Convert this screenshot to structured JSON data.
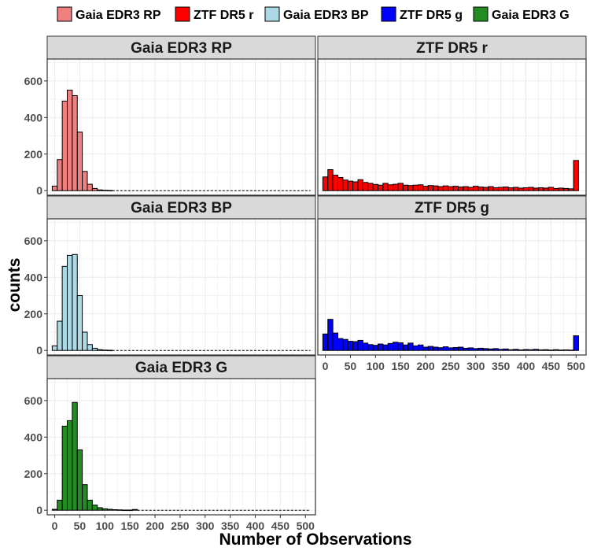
{
  "chart_data": {
    "type": "bar",
    "facet_layout": "2 columns, 3 rows (facet_wrap)",
    "x_label": "Number of Observations",
    "y_label": "counts",
    "x_range": [
      -15,
      520
    ],
    "y_range": [
      -25,
      720
    ],
    "x_ticks": [
      0,
      50,
      100,
      150,
      200,
      250,
      300,
      350,
      400,
      450,
      500
    ],
    "y_ticks": [
      0,
      200,
      400,
      600
    ],
    "bin_width": 10,
    "legend": {
      "position": "top",
      "entries": [
        {
          "label": "Gaia EDR3 RP",
          "color": "#F08080"
        },
        {
          "label": "ZTF DR5 r",
          "color": "#FF0000"
        },
        {
          "label": "Gaia EDR3 BP",
          "color": "#ADD8E6"
        },
        {
          "label": "ZTF DR5 g",
          "color": "#0000FF"
        },
        {
          "label": "Gaia EDR3 G",
          "color": "#228B22"
        }
      ]
    },
    "panels": [
      {
        "title": "Gaia EDR3 RP",
        "color": "#F08080",
        "bins": [
          {
            "x": 0,
            "y": 25
          },
          {
            "x": 10,
            "y": 170
          },
          {
            "x": 20,
            "y": 490
          },
          {
            "x": 30,
            "y": 550
          },
          {
            "x": 40,
            "y": 520
          },
          {
            "x": 50,
            "y": 320
          },
          {
            "x": 60,
            "y": 105
          },
          {
            "x": 70,
            "y": 35
          },
          {
            "x": 80,
            "y": 12
          },
          {
            "x": 90,
            "y": 4
          },
          {
            "x": 100,
            "y": 2
          },
          {
            "x": 110,
            "y": 1
          }
        ]
      },
      {
        "title": "ZTF DR5 r",
        "color": "#FF0000",
        "bins": [
          {
            "x": 0,
            "y": 75
          },
          {
            "x": 10,
            "y": 115
          },
          {
            "x": 20,
            "y": 85
          },
          {
            "x": 30,
            "y": 72
          },
          {
            "x": 40,
            "y": 58
          },
          {
            "x": 50,
            "y": 52
          },
          {
            "x": 60,
            "y": 48
          },
          {
            "x": 70,
            "y": 60
          },
          {
            "x": 80,
            "y": 45
          },
          {
            "x": 90,
            "y": 40
          },
          {
            "x": 100,
            "y": 34
          },
          {
            "x": 110,
            "y": 30
          },
          {
            "x": 120,
            "y": 40
          },
          {
            "x": 130,
            "y": 32
          },
          {
            "x": 140,
            "y": 35
          },
          {
            "x": 150,
            "y": 40
          },
          {
            "x": 160,
            "y": 30
          },
          {
            "x": 170,
            "y": 28
          },
          {
            "x": 180,
            "y": 30
          },
          {
            "x": 190,
            "y": 32
          },
          {
            "x": 200,
            "y": 24
          },
          {
            "x": 210,
            "y": 28
          },
          {
            "x": 220,
            "y": 26
          },
          {
            "x": 230,
            "y": 22
          },
          {
            "x": 240,
            "y": 26
          },
          {
            "x": 250,
            "y": 22
          },
          {
            "x": 260,
            "y": 24
          },
          {
            "x": 270,
            "y": 20
          },
          {
            "x": 280,
            "y": 22
          },
          {
            "x": 290,
            "y": 18
          },
          {
            "x": 300,
            "y": 24
          },
          {
            "x": 310,
            "y": 20
          },
          {
            "x": 320,
            "y": 18
          },
          {
            "x": 330,
            "y": 22
          },
          {
            "x": 340,
            "y": 16
          },
          {
            "x": 350,
            "y": 18
          },
          {
            "x": 360,
            "y": 20
          },
          {
            "x": 370,
            "y": 16
          },
          {
            "x": 380,
            "y": 18
          },
          {
            "x": 390,
            "y": 14
          },
          {
            "x": 400,
            "y": 16
          },
          {
            "x": 410,
            "y": 18
          },
          {
            "x": 420,
            "y": 14
          },
          {
            "x": 430,
            "y": 16
          },
          {
            "x": 440,
            "y": 14
          },
          {
            "x": 450,
            "y": 18
          },
          {
            "x": 460,
            "y": 12
          },
          {
            "x": 470,
            "y": 14
          },
          {
            "x": 480,
            "y": 12
          },
          {
            "x": 490,
            "y": 10
          },
          {
            "x": 500,
            "y": 165
          }
        ]
      },
      {
        "title": "Gaia EDR3 BP",
        "color": "#ADD8E6",
        "bins": [
          {
            "x": 0,
            "y": 25
          },
          {
            "x": 10,
            "y": 160
          },
          {
            "x": 20,
            "y": 460
          },
          {
            "x": 30,
            "y": 520
          },
          {
            "x": 40,
            "y": 525
          },
          {
            "x": 50,
            "y": 300
          },
          {
            "x": 60,
            "y": 100
          },
          {
            "x": 70,
            "y": 32
          },
          {
            "x": 80,
            "y": 12
          },
          {
            "x": 90,
            "y": 4
          },
          {
            "x": 100,
            "y": 2
          },
          {
            "x": 110,
            "y": 1
          }
        ]
      },
      {
        "title": "ZTF DR5 g",
        "color": "#0000FF",
        "bins": [
          {
            "x": 0,
            "y": 90
          },
          {
            "x": 10,
            "y": 170
          },
          {
            "x": 20,
            "y": 95
          },
          {
            "x": 30,
            "y": 65
          },
          {
            "x": 40,
            "y": 60
          },
          {
            "x": 50,
            "y": 50
          },
          {
            "x": 60,
            "y": 48
          },
          {
            "x": 70,
            "y": 55
          },
          {
            "x": 80,
            "y": 40
          },
          {
            "x": 90,
            "y": 32
          },
          {
            "x": 100,
            "y": 28
          },
          {
            "x": 110,
            "y": 35
          },
          {
            "x": 120,
            "y": 30
          },
          {
            "x": 130,
            "y": 38
          },
          {
            "x": 140,
            "y": 45
          },
          {
            "x": 150,
            "y": 42
          },
          {
            "x": 160,
            "y": 30
          },
          {
            "x": 170,
            "y": 40
          },
          {
            "x": 180,
            "y": 25
          },
          {
            "x": 190,
            "y": 30
          },
          {
            "x": 200,
            "y": 18
          },
          {
            "x": 210,
            "y": 22
          },
          {
            "x": 220,
            "y": 18
          },
          {
            "x": 230,
            "y": 15
          },
          {
            "x": 240,
            "y": 20
          },
          {
            "x": 250,
            "y": 14
          },
          {
            "x": 260,
            "y": 16
          },
          {
            "x": 270,
            "y": 18
          },
          {
            "x": 280,
            "y": 12
          },
          {
            "x": 290,
            "y": 14
          },
          {
            "x": 300,
            "y": 10
          },
          {
            "x": 310,
            "y": 12
          },
          {
            "x": 320,
            "y": 10
          },
          {
            "x": 330,
            "y": 8
          },
          {
            "x": 340,
            "y": 10
          },
          {
            "x": 350,
            "y": 6
          },
          {
            "x": 360,
            "y": 8
          },
          {
            "x": 370,
            "y": 4
          },
          {
            "x": 380,
            "y": 6
          },
          {
            "x": 390,
            "y": 3
          },
          {
            "x": 400,
            "y": 5
          },
          {
            "x": 410,
            "y": 4
          },
          {
            "x": 420,
            "y": 6
          },
          {
            "x": 430,
            "y": 3
          },
          {
            "x": 440,
            "y": 4
          },
          {
            "x": 450,
            "y": 2
          },
          {
            "x": 460,
            "y": 4
          },
          {
            "x": 470,
            "y": 2
          },
          {
            "x": 480,
            "y": 3
          },
          {
            "x": 490,
            "y": 2
          },
          {
            "x": 500,
            "y": 80
          }
        ]
      },
      {
        "title": "Gaia EDR3 G",
        "color": "#228B22",
        "bins": [
          {
            "x": 0,
            "y": 5
          },
          {
            "x": 10,
            "y": 55
          },
          {
            "x": 20,
            "y": 460
          },
          {
            "x": 30,
            "y": 490
          },
          {
            "x": 40,
            "y": 590
          },
          {
            "x": 50,
            "y": 330
          },
          {
            "x": 60,
            "y": 140
          },
          {
            "x": 70,
            "y": 55
          },
          {
            "x": 80,
            "y": 28
          },
          {
            "x": 90,
            "y": 14
          },
          {
            "x": 100,
            "y": 8
          },
          {
            "x": 110,
            "y": 5
          },
          {
            "x": 120,
            "y": 3
          },
          {
            "x": 130,
            "y": 2
          },
          {
            "x": 140,
            "y": 1
          },
          {
            "x": 150,
            "y": 1
          },
          {
            "x": 160,
            "y": 4
          }
        ]
      }
    ]
  }
}
